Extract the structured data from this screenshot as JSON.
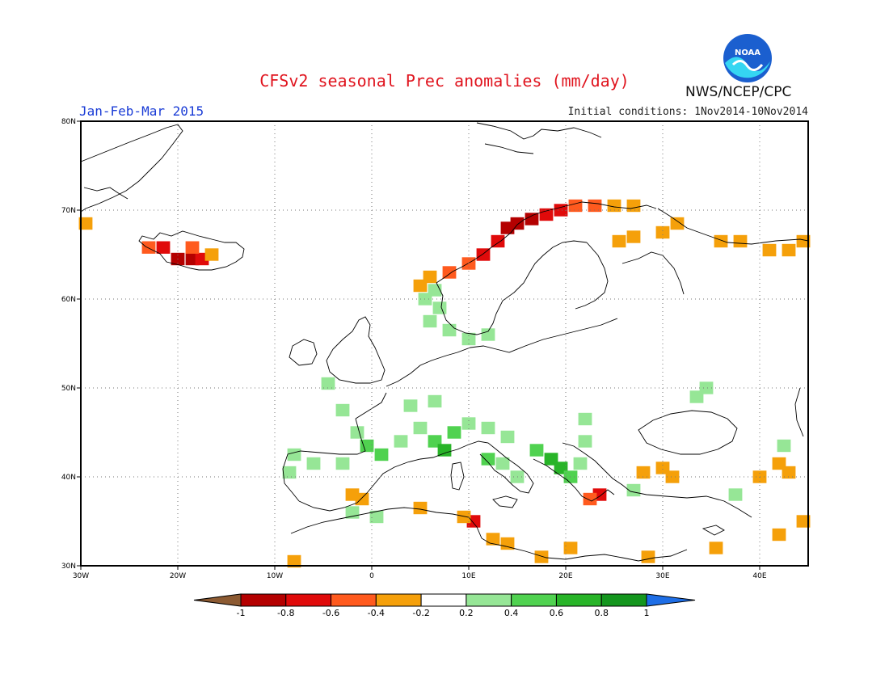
{
  "title": "CFSv2 seasonal Prec anomalies (mm/day)",
  "season": "Jan-Feb-Mar 2015",
  "initial_conditions": "Initial conditions: 1Nov2014-10Nov2014",
  "agency": "NWS/NCEP/CPC",
  "logo_text": "NOAA",
  "map": {
    "lon_range": [
      -30,
      45
    ],
    "lat_range": [
      30,
      80
    ],
    "lon_ticks": [
      "30W",
      "20W",
      "10W",
      "0",
      "10E",
      "20E",
      "30E",
      "40E"
    ],
    "lat_ticks": [
      "80N",
      "70N",
      "60N",
      "50N",
      "40N",
      "30N"
    ],
    "grid": true
  },
  "colorbar": {
    "labels": [
      "-1",
      "-0.8",
      "-0.6",
      "-0.4",
      "-0.2",
      "0.2",
      "0.4",
      "0.6",
      "0.8",
      "1"
    ],
    "colors": [
      "#8c5a32",
      "#b40000",
      "#e00a0a",
      "#ff5a1e",
      "#f5a00a",
      "#ffffff",
      "#96e696",
      "#50d250",
      "#28b428",
      "#14961e",
      "#1e6ee6"
    ]
  },
  "anomaly_cells": [
    {
      "lon": -29.5,
      "lat": 68.5,
      "value": -0.3
    },
    {
      "lon": -23,
      "lat": 65.8,
      "value": -0.5
    },
    {
      "lon": -21.5,
      "lat": 65.8,
      "value": -0.6
    },
    {
      "lon": -20,
      "lat": 64.5,
      "value": -0.9
    },
    {
      "lon": -18.5,
      "lat": 64.5,
      "value": -0.9
    },
    {
      "lon": -17.5,
      "lat": 64.5,
      "value": -0.7
    },
    {
      "lon": -16.5,
      "lat": 65,
      "value": -0.3
    },
    {
      "lon": -18.5,
      "lat": 65.8,
      "value": -0.4
    },
    {
      "lon": 14,
      "lat": 68,
      "value": -0.9
    },
    {
      "lon": 15,
      "lat": 68.5,
      "value": -0.9
    },
    {
      "lon": 16.5,
      "lat": 69,
      "value": -0.8
    },
    {
      "lon": 18,
      "lat": 69.5,
      "value": -0.7
    },
    {
      "lon": 19.5,
      "lat": 70,
      "value": -0.6
    },
    {
      "lon": 21,
      "lat": 70.5,
      "value": -0.5
    },
    {
      "lon": 23,
      "lat": 70.5,
      "value": -0.4
    },
    {
      "lon": 25,
      "lat": 70.5,
      "value": -0.3
    },
    {
      "lon": 27,
      "lat": 70.5,
      "value": -0.3
    },
    {
      "lon": 13,
      "lat": 66.5,
      "value": -0.7
    },
    {
      "lon": 11.5,
      "lat": 65,
      "value": -0.6
    },
    {
      "lon": 10,
      "lat": 64,
      "value": -0.5
    },
    {
      "lon": 8,
      "lat": 63,
      "value": -0.4
    },
    {
      "lon": 6,
      "lat": 62.5,
      "value": -0.3
    },
    {
      "lon": 5,
      "lat": 61.5,
      "value": -0.3
    },
    {
      "lon": 25.5,
      "lat": 66.5,
      "value": -0.3
    },
    {
      "lon": 27,
      "lat": 67,
      "value": -0.3
    },
    {
      "lon": 30,
      "lat": 67.5,
      "value": -0.3
    },
    {
      "lon": 31.5,
      "lat": 68.5,
      "value": -0.3
    },
    {
      "lon": 36,
      "lat": 66.5,
      "value": -0.3
    },
    {
      "lon": 38,
      "lat": 66.5,
      "value": -0.3
    },
    {
      "lon": 41,
      "lat": 65.5,
      "value": -0.3
    },
    {
      "lon": 43,
      "lat": 65.5,
      "value": -0.3
    },
    {
      "lon": 44.5,
      "lat": 66.5,
      "value": -0.3
    },
    {
      "lon": 5.5,
      "lat": 60,
      "value": 0.3
    },
    {
      "lon": 7,
      "lat": 59,
      "value": 0.3
    },
    {
      "lon": 6,
      "lat": 57.5,
      "value": 0.3
    },
    {
      "lon": 8,
      "lat": 56.5,
      "value": 0.3
    },
    {
      "lon": 10,
      "lat": 55.5,
      "value": 0.3
    },
    {
      "lon": 12,
      "lat": 56,
      "value": 0.3
    },
    {
      "lon": 6.5,
      "lat": 61,
      "value": 0.3
    },
    {
      "lon": -4.5,
      "lat": 50.5,
      "value": 0.3
    },
    {
      "lon": -3,
      "lat": 47.5,
      "value": 0.3
    },
    {
      "lon": -1.5,
      "lat": 45,
      "value": 0.4
    },
    {
      "lon": -0.5,
      "lat": 43.5,
      "value": 0.5
    },
    {
      "lon": 1,
      "lat": 42.5,
      "value": 0.5
    },
    {
      "lon": 3,
      "lat": 44,
      "value": 0.4
    },
    {
      "lon": 5,
      "lat": 45.5,
      "value": 0.4
    },
    {
      "lon": 6.5,
      "lat": 44,
      "value": 0.6
    },
    {
      "lon": 7.5,
      "lat": 43,
      "value": 0.7
    },
    {
      "lon": 8.5,
      "lat": 45,
      "value": 0.5
    },
    {
      "lon": 10,
      "lat": 46,
      "value": 0.4
    },
    {
      "lon": 12,
      "lat": 45.5,
      "value": 0.3
    },
    {
      "lon": 14,
      "lat": 44.5,
      "value": 0.4
    },
    {
      "lon": 12,
      "lat": 42,
      "value": 0.5
    },
    {
      "lon": 13.5,
      "lat": 41.5,
      "value": 0.4
    },
    {
      "lon": 15,
      "lat": 40,
      "value": 0.3
    },
    {
      "lon": 17,
      "lat": 43,
      "value": 0.5
    },
    {
      "lon": 18.5,
      "lat": 42,
      "value": 0.7
    },
    {
      "lon": 19.5,
      "lat": 41,
      "value": 0.8
    },
    {
      "lon": 20.5,
      "lat": 40,
      "value": 0.6
    },
    {
      "lon": 21.5,
      "lat": 41.5,
      "value": 0.4
    },
    {
      "lon": 22,
      "lat": 44,
      "value": 0.3
    },
    {
      "lon": -8,
      "lat": 42.5,
      "value": 0.4
    },
    {
      "lon": -6,
      "lat": 41.5,
      "value": 0.3
    },
    {
      "lon": -3,
      "lat": 41.5,
      "value": 0.3
    },
    {
      "lon": -8.5,
      "lat": 40.5,
      "value": 0.3
    },
    {
      "lon": -2,
      "lat": 36,
      "value": 0.3
    },
    {
      "lon": 0.5,
      "lat": 35.5,
      "value": 0.3
    },
    {
      "lon": 4,
      "lat": 48,
      "value": 0.3
    },
    {
      "lon": 6.5,
      "lat": 48.5,
      "value": 0.3
    },
    {
      "lon": 22,
      "lat": 46.5,
      "value": 0.3
    },
    {
      "lon": 34.5,
      "lat": 50,
      "value": 0.3
    },
    {
      "lon": 33.5,
      "lat": 49,
      "value": 0.3
    },
    {
      "lon": 42.5,
      "lat": 43.5,
      "value": 0.3
    },
    {
      "lon": 37.5,
      "lat": 38,
      "value": 0.3
    },
    {
      "lon": 27,
      "lat": 38.5,
      "value": 0.3
    },
    {
      "lon": 23.5,
      "lat": 38,
      "value": -0.6
    },
    {
      "lon": 22.5,
      "lat": 37.5,
      "value": -0.4
    },
    {
      "lon": 10.5,
      "lat": 35,
      "value": -0.6
    },
    {
      "lon": 9.5,
      "lat": 35.5,
      "value": -0.3
    },
    {
      "lon": 5,
      "lat": 36.5,
      "value": -0.3
    },
    {
      "lon": -2,
      "lat": 38,
      "value": -0.3
    },
    {
      "lon": -1,
      "lat": 37.5,
      "value": -0.3
    },
    {
      "lon": 12.5,
      "lat": 33,
      "value": -0.3
    },
    {
      "lon": 14,
      "lat": 32.5,
      "value": -0.3
    },
    {
      "lon": 17.5,
      "lat": 31,
      "value": -0.3
    },
    {
      "lon": 20.5,
      "lat": 32,
      "value": -0.3
    },
    {
      "lon": 28,
      "lat": 40.5,
      "value": -0.3
    },
    {
      "lon": 30,
      "lat": 41,
      "value": -0.3
    },
    {
      "lon": 31,
      "lat": 40,
      "value": -0.3
    },
    {
      "lon": 40,
      "lat": 40,
      "value": -0.3
    },
    {
      "lon": 42,
      "lat": 41.5,
      "value": -0.3
    },
    {
      "lon": 43,
      "lat": 40.5,
      "value": -0.3
    },
    {
      "lon": 44.5,
      "lat": 35,
      "value": -0.3
    },
    {
      "lon": 42,
      "lat": 33.5,
      "value": -0.3
    },
    {
      "lon": 35.5,
      "lat": 32,
      "value": -0.3
    },
    {
      "lon": -8,
      "lat": 30.5,
      "value": -0.3
    },
    {
      "lon": 28.5,
      "lat": 31,
      "value": -0.3
    }
  ]
}
